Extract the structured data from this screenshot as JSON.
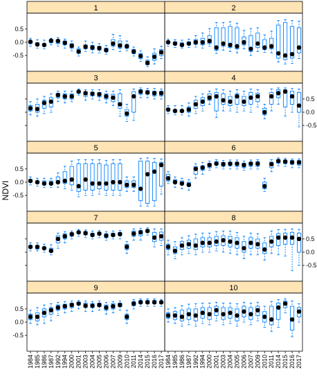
{
  "chart_data": {
    "type": "box",
    "ylabel": "NDVI",
    "ylim": [
      -1.1,
      1.1
    ],
    "yticks": [
      {
        "v": 0.5,
        "label": "0.5"
      },
      {
        "v": 0.0,
        "label": "0.0"
      },
      {
        "v": -0.5,
        "label": "-0.5"
      }
    ],
    "years": [
      "1984",
      "1985",
      "1986",
      "1987",
      "1992",
      "1994",
      "2000",
      "2001",
      "2003",
      "2004",
      "2005",
      "2006",
      "2007",
      "2009",
      "2010",
      "2011",
      "2014",
      "2015",
      "2016",
      "2017"
    ],
    "colors": {
      "strip": "#ffe4b5",
      "box": "#0080ff",
      "point": "#000000"
    },
    "layout": {
      "rows": 5,
      "cols": 2
    },
    "panels": [
      {
        "label": "1",
        "median": [
          0.02,
          -0.08,
          -0.1,
          0.06,
          0.05,
          -0.02,
          -0.13,
          -0.35,
          -0.17,
          -0.2,
          -0.22,
          -0.3,
          -0.05,
          -0.12,
          -0.15,
          -0.35,
          -0.52,
          -0.78,
          -0.55,
          -0.38
        ],
        "q1": [
          -0.05,
          -0.13,
          -0.15,
          -0.02,
          -0.05,
          -0.1,
          -0.22,
          -0.42,
          -0.25,
          -0.28,
          -0.3,
          -0.36,
          -0.15,
          -0.22,
          -0.23,
          -0.43,
          -0.62,
          -0.85,
          -0.68,
          -0.5
        ],
        "q3": [
          0.05,
          -0.02,
          -0.05,
          0.1,
          0.1,
          0.05,
          -0.05,
          -0.25,
          -0.1,
          -0.12,
          -0.15,
          -0.22,
          0.1,
          0.05,
          -0.08,
          -0.27,
          -0.42,
          -0.68,
          -0.42,
          -0.28
        ],
        "wlo": [
          -0.15,
          -0.22,
          -0.25,
          -0.1,
          -0.15,
          -0.22,
          -0.32,
          -0.52,
          -0.35,
          -0.4,
          -0.4,
          -0.45,
          -0.28,
          -0.35,
          -0.32,
          -0.52,
          -0.72,
          -0.92,
          -0.82,
          -0.62
        ],
        "whi": [
          0.15,
          0.1,
          0.08,
          0.15,
          0.18,
          0.12,
          0.05,
          -0.18,
          0.05,
          0.0,
          -0.05,
          -0.12,
          0.3,
          0.25,
          0.05,
          -0.18,
          -0.32,
          -0.55,
          -0.25,
          -0.15
        ]
      },
      {
        "label": "2",
        "median": [
          0.0,
          -0.05,
          -0.1,
          -0.05,
          0.0,
          0.0,
          0.05,
          -0.2,
          -0.05,
          -0.1,
          -0.15,
          0.0,
          -0.25,
          -0.05,
          -0.2,
          -0.15,
          -0.42,
          -0.5,
          -0.45,
          -0.2
        ],
        "q1": [
          -0.05,
          -0.1,
          -0.15,
          -0.1,
          -0.08,
          -0.1,
          -0.05,
          -0.3,
          -0.15,
          -0.2,
          -0.25,
          -0.1,
          -0.35,
          -0.2,
          -0.28,
          -0.25,
          -0.6,
          -0.65,
          -0.6,
          -0.4
        ],
        "q3": [
          0.05,
          0.02,
          -0.02,
          0.02,
          0.1,
          0.15,
          0.25,
          0.55,
          0.55,
          0.6,
          0.55,
          0.2,
          0.25,
          0.35,
          0.1,
          0.15,
          0.65,
          0.75,
          0.6,
          0.55
        ],
        "wlo": [
          -0.15,
          -0.2,
          -0.22,
          -0.2,
          -0.18,
          -0.22,
          -0.15,
          -0.42,
          -0.3,
          -0.35,
          -0.4,
          -0.25,
          -0.5,
          -0.35,
          -0.38,
          -0.4,
          -0.75,
          -0.82,
          -0.8,
          -0.62
        ],
        "whi": [
          0.12,
          0.1,
          0.08,
          0.12,
          0.25,
          0.35,
          0.52,
          0.75,
          0.75,
          0.78,
          0.72,
          0.45,
          0.52,
          0.55,
          0.28,
          0.42,
          0.82,
          0.85,
          0.82,
          0.8
        ]
      },
      {
        "label": "3",
        "median": [
          0.15,
          0.12,
          0.35,
          0.4,
          0.65,
          0.6,
          0.6,
          0.78,
          0.72,
          0.7,
          0.68,
          0.6,
          0.55,
          0.3,
          -0.05,
          0.6,
          0.78,
          0.75,
          0.72,
          0.72
        ],
        "q1": [
          0.05,
          0.0,
          0.15,
          0.2,
          0.55,
          0.5,
          0.5,
          0.72,
          0.6,
          0.62,
          0.58,
          0.5,
          0.4,
          0.15,
          -0.15,
          0.0,
          0.68,
          0.68,
          0.62,
          0.62
        ],
        "q3": [
          0.25,
          0.3,
          0.45,
          0.55,
          0.72,
          0.7,
          0.7,
          0.82,
          0.78,
          0.76,
          0.75,
          0.7,
          0.68,
          0.7,
          0.1,
          0.78,
          0.85,
          0.82,
          0.8,
          0.8
        ],
        "wlo": [
          -0.1,
          -0.15,
          -0.05,
          0.0,
          0.4,
          0.35,
          0.4,
          0.65,
          0.45,
          0.5,
          0.45,
          0.35,
          0.25,
          -0.15,
          -0.35,
          -0.3,
          0.55,
          0.55,
          0.5,
          0.5
        ],
        "whi": [
          0.4,
          0.5,
          0.6,
          0.7,
          0.8,
          0.8,
          0.8,
          0.88,
          0.85,
          0.85,
          0.85,
          0.8,
          0.8,
          0.85,
          0.3,
          0.88,
          0.92,
          0.9,
          0.9,
          0.88
        ]
      },
      {
        "label": "4",
        "median": [
          0.1,
          0.05,
          0.05,
          0.1,
          0.3,
          0.4,
          0.55,
          0.6,
          0.45,
          0.4,
          0.6,
          0.4,
          0.55,
          0.6,
          0.0,
          0.6,
          0.72,
          0.78,
          0.6,
          0.25
        ],
        "q1": [
          0.05,
          0.0,
          0.0,
          0.0,
          0.15,
          0.25,
          0.45,
          0.05,
          0.3,
          0.25,
          0.3,
          0.25,
          0.3,
          0.4,
          -0.1,
          0.3,
          0.55,
          0.2,
          0.3,
          0.0
        ],
        "q3": [
          0.15,
          0.1,
          0.1,
          0.2,
          0.45,
          0.55,
          0.7,
          0.75,
          0.7,
          0.6,
          0.7,
          0.6,
          0.75,
          0.72,
          0.15,
          0.75,
          0.85,
          0.85,
          0.8,
          0.75
        ],
        "wlo": [
          -0.05,
          -0.1,
          -0.1,
          -0.15,
          -0.05,
          0.05,
          0.3,
          -0.2,
          0.05,
          0.05,
          0.0,
          0.05,
          0.0,
          0.2,
          -0.25,
          0.05,
          0.3,
          -0.15,
          0.0,
          -0.55
        ],
        "whi": [
          0.25,
          0.25,
          0.25,
          0.35,
          0.6,
          0.7,
          0.8,
          0.88,
          0.85,
          0.8,
          0.85,
          0.8,
          0.88,
          0.85,
          0.3,
          0.88,
          0.92,
          0.92,
          0.9,
          0.88
        ]
      },
      {
        "label": "5",
        "median": [
          0.05,
          0.0,
          -0.05,
          -0.05,
          0.0,
          0.05,
          0.1,
          -0.15,
          0.1,
          -0.05,
          -0.05,
          -0.05,
          0.0,
          0.0,
          -0.1,
          -0.1,
          -0.25,
          0.3,
          0.4,
          0.65
        ],
        "q1": [
          0.0,
          -0.05,
          -0.1,
          -0.1,
          -0.05,
          -0.05,
          -0.1,
          -0.35,
          -0.3,
          -0.3,
          -0.25,
          -0.3,
          -0.3,
          -0.3,
          -0.2,
          -0.2,
          -0.7,
          -0.8,
          -0.7,
          -0.15
        ],
        "q3": [
          0.1,
          0.05,
          0.05,
          0.05,
          0.2,
          0.4,
          0.6,
          0.7,
          0.7,
          0.7,
          0.7,
          0.65,
          0.7,
          0.7,
          0.05,
          0.05,
          0.8,
          0.8,
          0.75,
          0.75
        ],
        "wlo": [
          -0.1,
          -0.15,
          -0.2,
          -0.2,
          -0.2,
          -0.25,
          -0.3,
          -0.55,
          -0.5,
          -0.5,
          -0.45,
          -0.5,
          -0.5,
          -0.5,
          -0.35,
          -0.35,
          -0.9,
          -0.9,
          -0.9,
          -0.45
        ],
        "whi": [
          0.2,
          0.15,
          0.15,
          0.15,
          0.35,
          0.6,
          0.8,
          0.85,
          0.85,
          0.85,
          0.85,
          0.82,
          0.85,
          0.85,
          0.2,
          0.2,
          0.9,
          0.92,
          0.9,
          0.88
        ]
      },
      {
        "label": "6",
        "median": [
          0.15,
          0.0,
          -0.05,
          -0.1,
          0.5,
          0.55,
          0.65,
          0.7,
          0.68,
          0.7,
          0.7,
          0.65,
          0.7,
          0.7,
          -0.15,
          0.68,
          0.8,
          0.78,
          0.75,
          0.75
        ],
        "q1": [
          0.05,
          -0.05,
          -0.1,
          -0.15,
          0.3,
          0.45,
          0.55,
          0.65,
          0.6,
          0.62,
          0.6,
          0.55,
          0.6,
          0.6,
          -0.25,
          0.55,
          0.72,
          0.7,
          0.68,
          0.65
        ],
        "q3": [
          0.3,
          0.1,
          0.05,
          0.0,
          0.6,
          0.62,
          0.72,
          0.78,
          0.75,
          0.76,
          0.76,
          0.72,
          0.76,
          0.78,
          0.0,
          0.76,
          0.86,
          0.84,
          0.82,
          0.82
        ],
        "wlo": [
          -0.05,
          -0.2,
          -0.25,
          -0.3,
          0.15,
          0.3,
          0.45,
          0.55,
          0.5,
          0.5,
          0.5,
          0.45,
          0.5,
          0.5,
          -0.35,
          0.4,
          0.62,
          0.6,
          0.55,
          0.55
        ],
        "whi": [
          0.4,
          0.2,
          0.15,
          0.1,
          0.7,
          0.75,
          0.8,
          0.85,
          0.82,
          0.84,
          0.84,
          0.8,
          0.84,
          0.85,
          0.15,
          0.85,
          0.92,
          0.9,
          0.88,
          0.88
        ]
      },
      {
        "label": "7",
        "median": [
          0.2,
          0.2,
          0.15,
          0.05,
          0.5,
          0.6,
          0.68,
          0.75,
          0.72,
          0.65,
          0.7,
          0.62,
          0.65,
          0.68,
          0.2,
          0.7,
          0.75,
          0.8,
          0.55,
          0.6
        ],
        "q1": [
          0.15,
          0.12,
          0.1,
          0.0,
          0.35,
          0.5,
          0.6,
          0.7,
          0.65,
          0.6,
          0.65,
          0.55,
          0.6,
          0.62,
          0.1,
          0.6,
          0.62,
          0.75,
          0.4,
          0.45
        ],
        "q3": [
          0.25,
          0.25,
          0.2,
          0.15,
          0.62,
          0.7,
          0.74,
          0.8,
          0.78,
          0.72,
          0.76,
          0.7,
          0.72,
          0.75,
          0.3,
          0.8,
          0.82,
          0.86,
          0.75,
          0.76
        ],
        "wlo": [
          0.05,
          0.05,
          0.0,
          -0.1,
          0.15,
          0.35,
          0.5,
          0.6,
          0.55,
          0.5,
          0.55,
          0.45,
          0.5,
          0.5,
          -0.05,
          0.45,
          0.45,
          0.65,
          0.2,
          0.25
        ],
        "whi": [
          0.35,
          0.35,
          0.3,
          0.28,
          0.72,
          0.78,
          0.8,
          0.86,
          0.84,
          0.8,
          0.82,
          0.78,
          0.8,
          0.82,
          0.4,
          0.88,
          0.9,
          0.92,
          0.88,
          0.88
        ]
      },
      {
        "label": "8",
        "median": [
          0.2,
          0.05,
          0.25,
          0.3,
          0.25,
          0.35,
          0.35,
          0.4,
          0.45,
          0.4,
          0.35,
          0.15,
          0.35,
          0.3,
          0.1,
          0.4,
          0.55,
          0.55,
          0.55,
          0.5
        ],
        "q1": [
          0.1,
          -0.05,
          0.1,
          0.15,
          0.1,
          0.2,
          0.2,
          0.25,
          0.25,
          0.2,
          0.15,
          0.0,
          0.15,
          0.15,
          -0.05,
          0.2,
          0.25,
          0.3,
          0.3,
          0.0
        ],
        "q3": [
          0.3,
          0.2,
          0.4,
          0.45,
          0.5,
          0.55,
          0.55,
          0.6,
          0.62,
          0.6,
          0.55,
          0.4,
          0.55,
          0.5,
          0.35,
          0.6,
          0.7,
          0.72,
          0.75,
          0.72
        ],
        "wlo": [
          -0.1,
          -0.25,
          -0.1,
          -0.05,
          -0.1,
          0.0,
          0.0,
          0.05,
          0.0,
          -0.05,
          -0.1,
          -0.25,
          -0.1,
          -0.1,
          -0.3,
          -0.05,
          -0.1,
          -0.15,
          -0.7,
          -0.5
        ],
        "whi": [
          0.45,
          0.4,
          0.55,
          0.62,
          0.68,
          0.72,
          0.72,
          0.78,
          0.8,
          0.8,
          0.75,
          0.6,
          0.72,
          0.7,
          0.55,
          0.8,
          0.85,
          0.86,
          0.88,
          0.86
        ]
      },
      {
        "label": "9",
        "median": [
          0.2,
          0.2,
          0.35,
          0.45,
          0.55,
          0.6,
          0.65,
          0.7,
          0.62,
          0.62,
          0.65,
          0.55,
          0.6,
          0.65,
          0.2,
          0.7,
          0.75,
          0.75,
          0.75,
          0.75
        ],
        "q1": [
          0.1,
          0.05,
          0.2,
          0.3,
          0.45,
          0.5,
          0.55,
          0.65,
          0.55,
          0.55,
          0.58,
          0.45,
          0.5,
          0.58,
          0.1,
          0.62,
          0.7,
          0.7,
          0.7,
          0.7
        ],
        "q3": [
          0.3,
          0.35,
          0.5,
          0.55,
          0.65,
          0.68,
          0.72,
          0.76,
          0.72,
          0.7,
          0.72,
          0.65,
          0.7,
          0.72,
          0.3,
          0.78,
          0.82,
          0.82,
          0.82,
          0.8
        ],
        "wlo": [
          -0.05,
          -0.1,
          -0.05,
          0.05,
          0.25,
          0.35,
          0.4,
          0.5,
          0.4,
          0.4,
          0.45,
          0.3,
          0.35,
          0.45,
          -0.05,
          0.5,
          0.6,
          0.6,
          0.6,
          0.6
        ],
        "whi": [
          0.45,
          0.55,
          0.65,
          0.7,
          0.75,
          0.78,
          0.8,
          0.82,
          0.8,
          0.78,
          0.8,
          0.75,
          0.78,
          0.8,
          0.45,
          0.85,
          0.88,
          0.88,
          0.88,
          0.86
        ]
      },
      {
        "label": "10",
        "median": [
          0.25,
          0.25,
          0.2,
          0.3,
          0.25,
          0.35,
          0.3,
          0.45,
          0.3,
          0.35,
          0.25,
          0.4,
          0.3,
          0.45,
          0.2,
          0.1,
          0.55,
          0.7,
          0.1,
          0.4
        ],
        "q1": [
          0.15,
          0.1,
          0.05,
          0.1,
          0.05,
          0.15,
          0.1,
          0.25,
          0.1,
          0.15,
          0.05,
          0.2,
          0.1,
          0.25,
          0.0,
          -0.1,
          0.1,
          0.55,
          -0.3,
          0.2
        ],
        "q3": [
          0.35,
          0.4,
          0.45,
          0.5,
          0.5,
          0.55,
          0.55,
          0.6,
          0.55,
          0.55,
          0.5,
          0.6,
          0.55,
          0.6,
          0.4,
          0.6,
          0.72,
          0.8,
          0.6,
          0.55
        ],
        "wlo": [
          0.0,
          -0.05,
          -0.15,
          -0.1,
          -0.15,
          -0.05,
          -0.1,
          0.05,
          -0.1,
          -0.05,
          -0.15,
          0.0,
          -0.1,
          0.05,
          -0.2,
          -0.35,
          -0.2,
          0.35,
          -0.55,
          0.0
        ],
        "whi": [
          0.5,
          0.55,
          0.62,
          0.68,
          0.7,
          0.72,
          0.72,
          0.75,
          0.72,
          0.72,
          0.7,
          0.75,
          0.72,
          0.75,
          0.6,
          0.78,
          0.85,
          0.88,
          0.8,
          0.7
        ]
      }
    ]
  }
}
